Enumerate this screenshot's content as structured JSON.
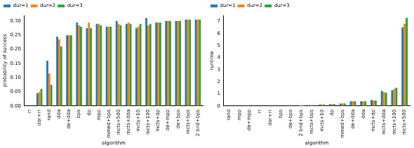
{
  "chart_data": [
    {
      "type": "bar",
      "x_label": "algorithm",
      "y_label": "probability of success",
      "categories": [
        "rr",
        "dor+rr",
        "rand",
        "dda",
        "de+dda",
        "bps",
        "dp",
        "mpp",
        "mmed+bps",
        "mcts+500",
        "mcts+dda",
        "mcts+10",
        "mcts+100",
        "mcts+dp",
        "de+mpp",
        "de+bps",
        "mcts+bps",
        "2 bnd+bps"
      ],
      "series": [
        {
          "name": "dur=1",
          "color": "#1f77b4",
          "values": [
            0,
            0.045,
            0.16,
            0.245,
            0.25,
            0.295,
            0.275,
            0.29,
            0.28,
            0.3,
            0.29,
            0.275,
            0.31,
            0.295,
            0.3,
            0.3,
            0.305,
            0.305
          ]
        },
        {
          "name": "dur=2",
          "color": "#ff7f0e",
          "values": [
            0,
            0.05,
            0.115,
            0.235,
            0.25,
            0.285,
            0.295,
            0.29,
            0.28,
            0.29,
            0.295,
            0.28,
            0.285,
            0.295,
            0.3,
            0.3,
            0.305,
            0.305
          ]
        },
        {
          "name": "dur=3",
          "color": "#2ca02c",
          "values": [
            0,
            0.06,
            0.075,
            0.21,
            0.25,
            0.28,
            0.275,
            0.285,
            0.28,
            0.285,
            0.29,
            0.29,
            0.29,
            0.295,
            0.3,
            0.3,
            0.305,
            0.305
          ]
        }
      ],
      "ylim": [
        0,
        0.32
      ],
      "yticks": [
        {
          "value": 0,
          "label": "0.00"
        },
        {
          "value": 0.05,
          "label": "0.05"
        },
        {
          "value": 0.1,
          "label": "0.10"
        },
        {
          "value": 0.15,
          "label": "0.15"
        },
        {
          "value": 0.2,
          "label": "0.20"
        },
        {
          "value": 0.25,
          "label": "0.25"
        },
        {
          "value": 0.3,
          "label": "0.30"
        }
      ],
      "grid": false,
      "legend": "upper left"
    },
    {
      "type": "bar",
      "x_label": "algorithm",
      "y_label": "runtime",
      "categories": [
        "rand",
        "mpp",
        "de+mpp",
        "rr",
        "dor+rr",
        "bps",
        "de+bps",
        "2 bnd+bps",
        "mcts+bps",
        "mcts+10",
        "dp",
        "mmed+bps",
        "de+dda",
        "dda",
        "mcts+dp",
        "mcts+dda",
        "mcts+100",
        "mcts+500"
      ],
      "series": [
        {
          "name": "dur=1",
          "color": "#1f77b4",
          "values": [
            0,
            0,
            0,
            0,
            0.01,
            0.01,
            0.02,
            0.05,
            0.08,
            0.12,
            0.15,
            0.2,
            0.4,
            0.4,
            0.5,
            1.25,
            1.3,
            6.5
          ]
        },
        {
          "name": "dur=2",
          "color": "#ff7f0e",
          "values": [
            0,
            0,
            0,
            0,
            0.01,
            0.01,
            0.02,
            0.05,
            0.08,
            0.12,
            0.15,
            0.2,
            0.4,
            0.4,
            0.45,
            1.15,
            1.4,
            6.8
          ]
        },
        {
          "name": "dur=3",
          "color": "#2ca02c",
          "values": [
            0,
            0,
            0,
            0,
            0.01,
            0.01,
            0.02,
            0.05,
            0.08,
            0.12,
            0.15,
            0.2,
            0.4,
            0.4,
            0.45,
            1.1,
            1.5,
            7.3
          ]
        }
      ],
      "ylim": [
        0,
        7.5
      ],
      "yticks": [
        0,
        1,
        2,
        3,
        4,
        5,
        6,
        7
      ],
      "grid": false,
      "legend": "upper left"
    }
  ]
}
